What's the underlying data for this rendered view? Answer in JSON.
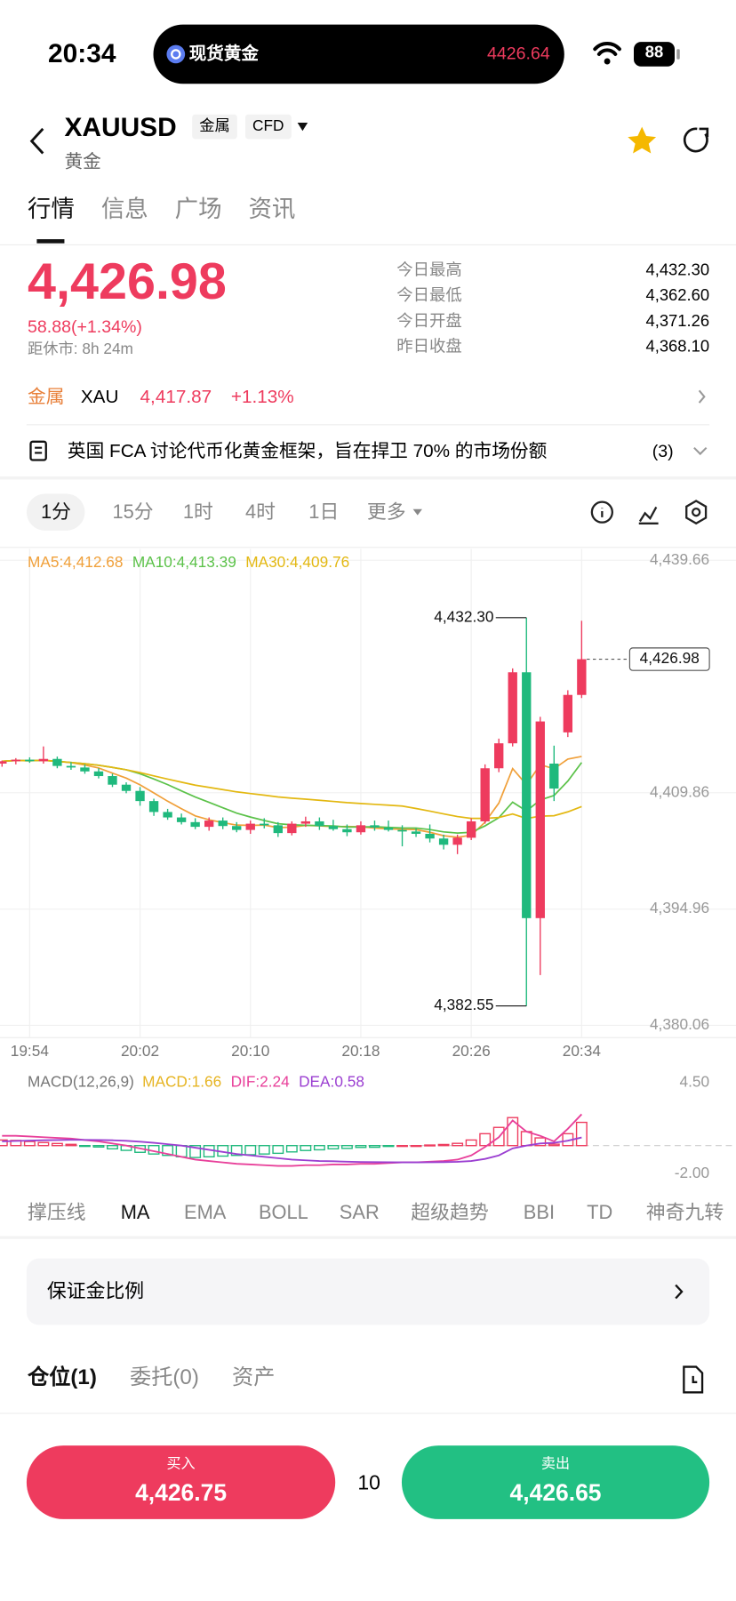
{
  "status": {
    "time": "20:34",
    "ticker_name": "现货黄金",
    "ticker_price": "4426.64",
    "battery": "88"
  },
  "header": {
    "symbol": "XAUUSD",
    "tags": [
      "金属",
      "CFD"
    ],
    "subtitle": "黄金"
  },
  "tabs": [
    "行情",
    "信息",
    "广场",
    "资讯"
  ],
  "quote": {
    "price": "4,426.98",
    "change": "58.88(+1.34%)",
    "close_time": "距休市: 8h 24m",
    "stats": [
      {
        "label": "今日最高",
        "value": "4,432.30"
      },
      {
        "label": "今日最低",
        "value": "4,362.60"
      },
      {
        "label": "今日开盘",
        "value": "4,371.26"
      },
      {
        "label": "昨日收盘",
        "value": "4,368.10"
      }
    ]
  },
  "related": {
    "label": "金属",
    "symbol": "XAU",
    "price": "4,417.87",
    "change": "+1.13%"
  },
  "news": {
    "text": "英国 FCA 讨论代币化黄金框架，旨在捍卫 70% 的市场份额",
    "count": "(3)"
  },
  "intervals": [
    "1分",
    "15分",
    "1时",
    "4时",
    "1日",
    "更多"
  ],
  "chart_data": [
    {
      "type": "candlestick",
      "categories": [
        null,
        null,
        "19:54",
        null,
        null,
        null,
        null,
        null,
        null,
        null,
        "20:02",
        null,
        null,
        null,
        null,
        null,
        null,
        null,
        "20:10",
        null,
        null,
        null,
        null,
        null,
        null,
        null,
        "20:18",
        null,
        null,
        null,
        null,
        null,
        null,
        null,
        "20:26",
        null,
        null,
        null,
        null,
        null,
        null,
        null,
        "20:34"
      ],
      "open": [
        4413.6,
        4413.9,
        4414.1,
        4413.9,
        4414.2,
        4413.3,
        4413.1,
        4412.6,
        4412.0,
        4410.9,
        4410.1,
        4408.8,
        4407.4,
        4406.7,
        4406.1,
        4405.5,
        4406.3,
        4405.6,
        4405.1,
        4405.9,
        4405.7,
        4404.7,
        4405.9,
        4406.2,
        4405.6,
        4405.2,
        4404.8,
        4405.7,
        4405.4,
        4405.1,
        4404.9,
        4404.6,
        4404.0,
        4403.2,
        4404.1,
        4406.2,
        4413.0,
        4416.2,
        4425.3,
        4393.8,
        4413.6,
        4417.6,
        4422.4
      ],
      "high": [
        4414.0,
        4414.3,
        4414.4,
        4415.8,
        4414.5,
        4413.8,
        4413.5,
        4413.0,
        4412.3,
        4411.2,
        4410.6,
        4409.1,
        4407.8,
        4407.2,
        4406.6,
        4406.7,
        4406.7,
        4406.1,
        4406.3,
        4406.6,
        4406.1,
        4406.2,
        4406.8,
        4406.7,
        4406.4,
        4405.8,
        4406.2,
        4406.3,
        4406.3,
        4405.7,
        4405.3,
        4405.8,
        4404.5,
        4404.5,
        4406.6,
        4413.5,
        4416.8,
        4425.8,
        4432.3,
        4419.6,
        4415.9,
        4423.0,
        4431.9
      ],
      "low": [
        4413.2,
        4413.5,
        4413.7,
        4413.6,
        4413.0,
        4412.8,
        4412.3,
        4411.7,
        4410.6,
        4409.8,
        4408.2,
        4406.9,
        4406.4,
        4405.8,
        4405.2,
        4405.0,
        4405.2,
        4404.8,
        4404.6,
        4405.3,
        4404.2,
        4404.4,
        4405.5,
        4405.1,
        4405.0,
        4404.3,
        4404.5,
        4405.0,
        4404.9,
        4403.0,
        4404.2,
        4403.5,
        4402.6,
        4402.0,
        4403.8,
        4405.9,
        4412.5,
        4415.8,
        4382.55,
        4386.5,
        4408.8,
        4417.0,
        4422.0
      ],
      "close": [
        4413.9,
        4414.1,
        4413.9,
        4414.2,
        4413.3,
        4413.1,
        4412.6,
        4412.0,
        4410.9,
        4410.1,
        4408.8,
        4407.4,
        4406.7,
        4406.1,
        4405.5,
        4406.3,
        4405.6,
        4405.1,
        4405.9,
        4405.7,
        4404.7,
        4405.9,
        4406.2,
        4405.6,
        4405.2,
        4404.8,
        4405.7,
        4405.4,
        4405.1,
        4404.9,
        4404.6,
        4404.0,
        4403.2,
        4404.1,
        4406.2,
        4413.0,
        4416.2,
        4425.3,
        4393.8,
        4419.0,
        4410.4,
        4422.4,
        4426.98
      ],
      "up_color": "#ee3b5e",
      "down_color": "#1fb97d",
      "ylim": [
        4380.06,
        4439.66
      ],
      "yticks": [
        {
          "value": 4439.66,
          "label": "4,439.66"
        },
        {
          "value": 4409.86,
          "label": "4,409.86"
        },
        {
          "value": 4394.96,
          "label": "4,394.96"
        },
        {
          "value": 4380.06,
          "label": "4,380.06"
        }
      ],
      "grid": true,
      "annotations": [
        {
          "value": 4432.3,
          "label": "4,432.30"
        },
        {
          "value": 4382.55,
          "label": "4,382.55"
        }
      ],
      "last_price": {
        "value": 4426.98,
        "label": "4,426.98"
      },
      "ma": [
        {
          "label": "MA5:4,412.68",
          "color": "#f0a03a"
        },
        {
          "label": "MA10:4,413.39",
          "color": "#5cc24a"
        },
        {
          "label": "MA30:4,409.76",
          "color": "#e3b812"
        }
      ]
    },
    {
      "type": "macd",
      "title": "MACD(12,26,9)",
      "series": [
        {
          "name": "MACD:1.66",
          "color": "#e6b422",
          "values": [
            0.4,
            0.37,
            0.29,
            0.22,
            0.15,
            0.09,
            -0.01,
            -0.1,
            -0.23,
            -0.34,
            -0.48,
            -0.6,
            -0.7,
            -0.8,
            -0.85,
            -0.8,
            -0.75,
            -0.7,
            -0.65,
            -0.6,
            -0.55,
            -0.45,
            -0.35,
            -0.3,
            -0.23,
            -0.2,
            -0.13,
            -0.12,
            -0.06,
            0,
            0,
            0.04,
            0.08,
            0.16,
            0.4,
            0.85,
            1.3,
            2.0,
            1.0,
            0.55,
            0.1,
            0.85,
            1.66
          ]
        },
        {
          "name": "DIF:2.24",
          "color": "#e8409a",
          "values": [
            0.7,
            0.7,
            0.65,
            0.6,
            0.55,
            0.5,
            0.4,
            0.3,
            0.15,
            0.0,
            -0.2,
            -0.4,
            -0.6,
            -0.8,
            -1.0,
            -1.1,
            -1.2,
            -1.3,
            -1.35,
            -1.4,
            -1.45,
            -1.45,
            -1.4,
            -1.4,
            -1.35,
            -1.35,
            -1.3,
            -1.3,
            -1.25,
            -1.2,
            -1.2,
            -1.15,
            -1.1,
            -1.0,
            -0.7,
            -0.1,
            0.6,
            1.8,
            1.0,
            0.7,
            0.3,
            1.2,
            2.24
          ]
        },
        {
          "name": "DEA:0.58",
          "color": "#9b3fd1",
          "values": [
            0.3,
            0.33,
            0.36,
            0.38,
            0.4,
            0.41,
            0.41,
            0.4,
            0.38,
            0.34,
            0.28,
            0.2,
            0.1,
            0.0,
            -0.15,
            -0.3,
            -0.45,
            -0.6,
            -0.7,
            -0.8,
            -0.9,
            -1.0,
            -1.05,
            -1.1,
            -1.12,
            -1.15,
            -1.17,
            -1.18,
            -1.19,
            -1.2,
            -1.2,
            -1.19,
            -1.18,
            -1.16,
            -1.1,
            -0.95,
            -0.7,
            -0.2,
            0.0,
            0.15,
            0.2,
            0.35,
            0.58
          ]
        }
      ],
      "ylim": [
        -2.0,
        4.5
      ],
      "yticks": [
        {
          "value": 4.5,
          "label": "4.50"
        },
        {
          "value": -2.0,
          "label": "-2.00"
        }
      ]
    }
  ],
  "indicators": [
    "撑压线",
    "MA",
    "EMA",
    "BOLL",
    "SAR",
    "超级趋势",
    "BBI",
    "TD",
    "神奇九转"
  ],
  "margin": {
    "label": "保证金比例"
  },
  "positions": [
    "仓位(1)",
    "委托(0)",
    "资产"
  ],
  "trade": {
    "buy": {
      "label": "买入",
      "price": "4,426.75"
    },
    "quantity": "10",
    "sell": {
      "label": "卖出",
      "price": "4,426.65"
    }
  }
}
